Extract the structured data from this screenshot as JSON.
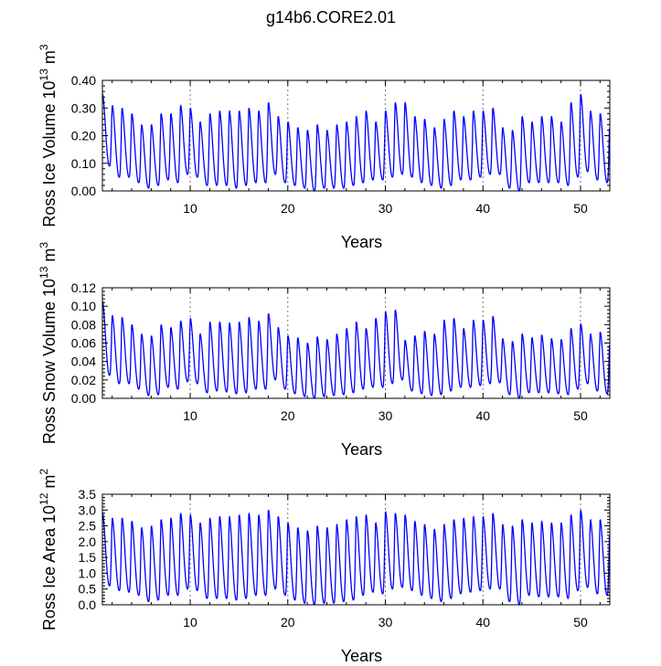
{
  "title": "g14b6.CORE2.01",
  "chart_data": [
    {
      "type": "line",
      "title": "",
      "xlabel": "Years",
      "ylabel": {
        "text": "Ross Ice Volume 10",
        "exp": "13",
        "unit": " m",
        "unit_exp": "3"
      },
      "xlim": [
        1,
        53
      ],
      "ylim": [
        0,
        0.4
      ],
      "xticks": [
        10,
        20,
        30,
        40,
        50
      ],
      "xtick_labels": [
        "10",
        "20",
        "30",
        "40",
        "50"
      ],
      "yticks": [
        0,
        0.1,
        0.2,
        0.3,
        0.4
      ],
      "ytick_labels": [
        "0.00",
        "0.10",
        "0.20",
        "0.30",
        "0.40"
      ],
      "vgrid": [
        10,
        20,
        30,
        40,
        50
      ],
      "series": [
        {
          "name": "Ross Ice Volume",
          "color": "#0000ff",
          "cycle_start_year": 1,
          "annual_max": [
            0.35,
            0.31,
            0.3,
            0.28,
            0.24,
            0.24,
            0.28,
            0.28,
            0.31,
            0.3,
            0.25,
            0.28,
            0.29,
            0.29,
            0.29,
            0.3,
            0.29,
            0.32,
            0.27,
            0.25,
            0.23,
            0.22,
            0.24,
            0.22,
            0.24,
            0.25,
            0.27,
            0.29,
            0.25,
            0.29,
            0.32,
            0.32,
            0.27,
            0.26,
            0.23,
            0.26,
            0.29,
            0.27,
            0.29,
            0.29,
            0.3,
            0.23,
            0.22,
            0.27,
            0.25,
            0.27,
            0.27,
            0.25,
            0.32,
            0.35,
            0.29,
            0.28
          ],
          "annual_min": [
            0.09,
            0.05,
            0.05,
            0.03,
            0.01,
            0.02,
            0.04,
            0.03,
            0.06,
            0.05,
            0.02,
            0.02,
            0.02,
            0.01,
            0.02,
            0.03,
            0.03,
            0.06,
            0.03,
            0.02,
            0.01,
            0.0,
            0.01,
            0.01,
            0.01,
            0.02,
            0.03,
            0.04,
            0.04,
            0.05,
            0.06,
            0.05,
            0.03,
            0.02,
            0.01,
            0.02,
            0.04,
            0.04,
            0.05,
            0.06,
            0.06,
            0.01,
            0.0,
            0.03,
            0.03,
            0.03,
            0.03,
            0.02,
            0.05,
            0.07,
            0.04,
            0.03
          ]
        }
      ]
    },
    {
      "type": "line",
      "title": "",
      "xlabel": "Years",
      "ylabel": {
        "text": "Ross Snow Volume 10",
        "exp": "13",
        "unit": " m",
        "unit_exp": "3"
      },
      "xlim": [
        1,
        53
      ],
      "ylim": [
        0,
        0.12
      ],
      "xticks": [
        10,
        20,
        30,
        40,
        50
      ],
      "xtick_labels": [
        "10",
        "20",
        "30",
        "40",
        "50"
      ],
      "yticks": [
        0,
        0.02,
        0.04,
        0.06,
        0.08,
        0.1,
        0.12
      ],
      "ytick_labels": [
        "0.00",
        "0.02",
        "0.04",
        "0.06",
        "0.08",
        "0.10",
        "0.12"
      ],
      "vgrid": [
        10,
        20,
        30,
        40,
        50
      ],
      "series": [
        {
          "name": "Ross Snow Volume",
          "color": "#0000ff",
          "cycle_start_year": 1,
          "annual_max": [
            0.105,
            0.09,
            0.088,
            0.08,
            0.07,
            0.068,
            0.08,
            0.077,
            0.084,
            0.087,
            0.07,
            0.083,
            0.083,
            0.082,
            0.083,
            0.088,
            0.084,
            0.092,
            0.077,
            0.068,
            0.066,
            0.06,
            0.067,
            0.064,
            0.07,
            0.076,
            0.083,
            0.076,
            0.087,
            0.094,
            0.096,
            0.063,
            0.068,
            0.073,
            0.07,
            0.085,
            0.087,
            0.076,
            0.085,
            0.085,
            0.089,
            0.065,
            0.062,
            0.07,
            0.066,
            0.069,
            0.065,
            0.064,
            0.076,
            0.081,
            0.07,
            0.072
          ],
          "annual_min": [
            0.025,
            0.016,
            0.016,
            0.01,
            0.003,
            0.004,
            0.012,
            0.01,
            0.018,
            0.016,
            0.006,
            0.008,
            0.007,
            0.005,
            0.006,
            0.01,
            0.01,
            0.02,
            0.01,
            0.005,
            0.002,
            0.0,
            0.002,
            0.003,
            0.004,
            0.006,
            0.01,
            0.012,
            0.012,
            0.016,
            0.02,
            0.008,
            0.005,
            0.003,
            0.004,
            0.008,
            0.012,
            0.012,
            0.014,
            0.016,
            0.017,
            0.004,
            0.0,
            0.006,
            0.006,
            0.006,
            0.005,
            0.004,
            0.01,
            0.016,
            0.008,
            0.005
          ]
        }
      ]
    },
    {
      "type": "line",
      "title": "",
      "xlabel": "Years",
      "ylabel": {
        "text": "Ross Ice Area 10",
        "exp": "12",
        "unit": " m",
        "unit_exp": "2"
      },
      "xlim": [
        1,
        53
      ],
      "ylim": [
        0,
        3.5
      ],
      "xticks": [
        10,
        20,
        30,
        40,
        50
      ],
      "xtick_labels": [
        "10",
        "20",
        "30",
        "40",
        "50"
      ],
      "yticks": [
        0,
        0.5,
        1,
        1.5,
        2,
        2.5,
        3,
        3.5
      ],
      "ytick_labels": [
        "0.0",
        "0.5",
        "1.0",
        "1.5",
        "2.0",
        "2.5",
        "3.0",
        "3.5"
      ],
      "vgrid": [
        10,
        20,
        30,
        40,
        50
      ],
      "series": [
        {
          "name": "Ross Ice Area",
          "color": "#0000ff",
          "cycle_start_year": 1,
          "annual_max": [
            2.9,
            2.75,
            2.75,
            2.65,
            2.45,
            2.5,
            2.7,
            2.75,
            2.9,
            2.85,
            2.6,
            2.75,
            2.8,
            2.8,
            2.85,
            2.9,
            2.85,
            3.0,
            2.8,
            2.6,
            2.45,
            2.35,
            2.5,
            2.45,
            2.55,
            2.7,
            2.8,
            2.85,
            2.6,
            2.95,
            2.9,
            2.85,
            2.65,
            2.55,
            2.4,
            2.55,
            2.7,
            2.75,
            2.8,
            2.8,
            2.9,
            2.55,
            2.5,
            2.7,
            2.6,
            2.65,
            2.6,
            2.6,
            2.85,
            3.0,
            2.7,
            2.7
          ],
          "annual_min": [
            0.6,
            0.45,
            0.4,
            0.3,
            0.1,
            0.15,
            0.3,
            0.3,
            0.5,
            0.45,
            0.2,
            0.2,
            0.2,
            0.15,
            0.2,
            0.3,
            0.3,
            0.5,
            0.3,
            0.15,
            0.05,
            0.0,
            0.05,
            0.05,
            0.1,
            0.15,
            0.3,
            0.4,
            0.35,
            0.5,
            0.55,
            0.45,
            0.3,
            0.2,
            0.1,
            0.2,
            0.35,
            0.4,
            0.45,
            0.5,
            0.5,
            0.1,
            0.0,
            0.3,
            0.25,
            0.25,
            0.25,
            0.2,
            0.45,
            0.55,
            0.35,
            0.3
          ]
        }
      ]
    }
  ]
}
